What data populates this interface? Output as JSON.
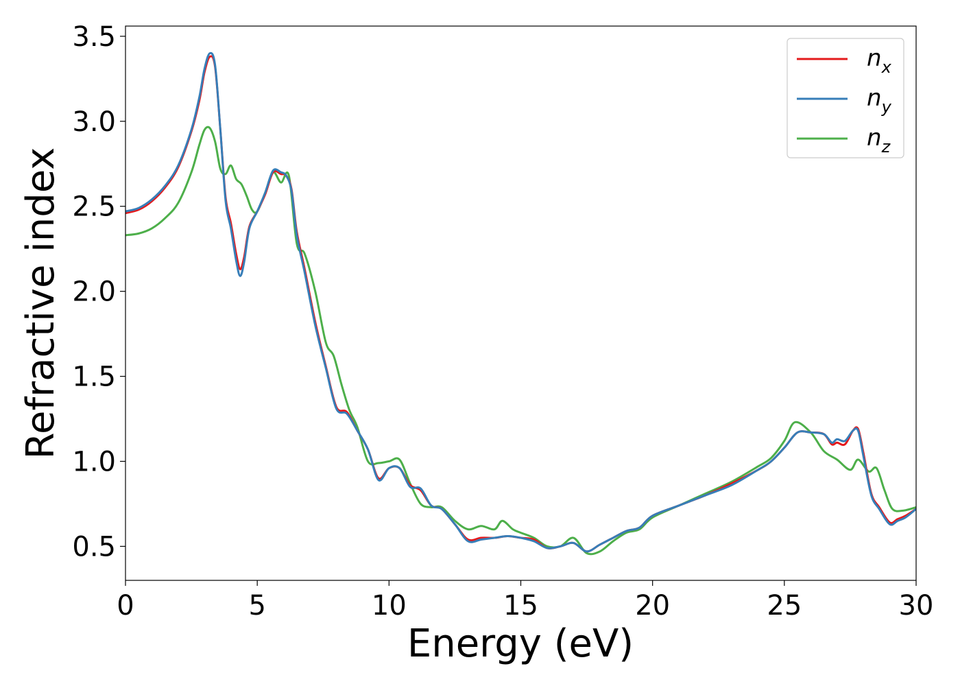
{
  "chart_data": {
    "type": "line",
    "xlabel": "Energy (eV)",
    "ylabel": "Refractive index",
    "xlim": [
      0,
      30
    ],
    "ylim": [
      0.3,
      3.56
    ],
    "xticks": [
      0,
      5,
      10,
      15,
      20,
      25,
      30
    ],
    "xtick_labels": [
      "0",
      "5",
      "10",
      "15",
      "20",
      "25",
      "30"
    ],
    "yticks": [
      0.5,
      1.0,
      1.5,
      2.0,
      2.5,
      3.0,
      3.5
    ],
    "ytick_labels": [
      "0.5",
      "1.0",
      "1.5",
      "2.0",
      "2.5",
      "3.0",
      "3.5"
    ],
    "grid": false,
    "legend_position": "top-right",
    "series": [
      {
        "name": "n_x",
        "label_main": "n",
        "label_sub": "x",
        "color": "#e41a1c",
        "x": [
          0,
          0.5,
          1,
          1.5,
          2,
          2.5,
          2.8,
          3.0,
          3.2,
          3.4,
          3.6,
          3.8,
          4.0,
          4.2,
          4.35,
          4.5,
          4.7,
          5.0,
          5.3,
          5.6,
          5.9,
          6.1,
          6.3,
          6.5,
          6.8,
          7.2,
          7.6,
          8.0,
          8.4,
          8.8,
          9.2,
          9.6,
          10.0,
          10.4,
          10.8,
          11.2,
          11.6,
          12.0,
          12.5,
          13.0,
          13.5,
          14.0,
          14.5,
          15.0,
          15.5,
          16.0,
          16.5,
          17.0,
          17.5,
          18.0,
          18.5,
          19.0,
          19.5,
          20.0,
          21.0,
          22.0,
          23.0,
          24.0,
          24.5,
          25.0,
          25.5,
          26.0,
          26.5,
          26.8,
          27.0,
          27.3,
          27.6,
          27.8,
          28.0,
          28.3,
          28.6,
          29.0,
          29.3,
          29.6,
          30.0
        ],
        "values": [
          2.46,
          2.48,
          2.53,
          2.61,
          2.73,
          2.94,
          3.12,
          3.29,
          3.38,
          3.32,
          2.95,
          2.55,
          2.4,
          2.22,
          2.13,
          2.2,
          2.38,
          2.47,
          2.57,
          2.7,
          2.69,
          2.68,
          2.6,
          2.35,
          2.13,
          1.82,
          1.56,
          1.32,
          1.29,
          1.18,
          1.07,
          0.9,
          0.96,
          0.96,
          0.86,
          0.83,
          0.74,
          0.72,
          0.63,
          0.54,
          0.55,
          0.55,
          0.56,
          0.55,
          0.54,
          0.49,
          0.5,
          0.52,
          0.47,
          0.51,
          0.55,
          0.59,
          0.61,
          0.68,
          0.74,
          0.8,
          0.87,
          0.95,
          1.0,
          1.08,
          1.17,
          1.17,
          1.16,
          1.1,
          1.11,
          1.1,
          1.18,
          1.19,
          1.05,
          0.81,
          0.73,
          0.64,
          0.66,
          0.68,
          0.72
        ]
      },
      {
        "name": "n_y",
        "label_main": "n",
        "label_sub": "y",
        "color": "#377eb8",
        "x": [
          0,
          0.5,
          1,
          1.5,
          2,
          2.5,
          2.8,
          3.0,
          3.2,
          3.4,
          3.6,
          3.8,
          4.0,
          4.2,
          4.35,
          4.5,
          4.7,
          5.0,
          5.3,
          5.6,
          5.9,
          6.1,
          6.3,
          6.5,
          6.8,
          7.2,
          7.6,
          8.0,
          8.4,
          8.8,
          9.2,
          9.6,
          10.0,
          10.4,
          10.8,
          11.2,
          11.6,
          12.0,
          12.5,
          13.0,
          13.5,
          14.0,
          14.5,
          15.0,
          15.5,
          16.0,
          16.5,
          17.0,
          17.5,
          18.0,
          18.5,
          19.0,
          19.5,
          20.0,
          21.0,
          22.0,
          23.0,
          24.0,
          24.5,
          25.0,
          25.5,
          26.0,
          26.5,
          26.8,
          27.0,
          27.3,
          27.6,
          27.8,
          28.0,
          28.3,
          28.6,
          29.0,
          29.3,
          29.6,
          30.0
        ],
        "values": [
          2.47,
          2.49,
          2.54,
          2.62,
          2.74,
          2.95,
          3.14,
          3.31,
          3.4,
          3.33,
          2.95,
          2.53,
          2.37,
          2.18,
          2.09,
          2.17,
          2.37,
          2.47,
          2.58,
          2.71,
          2.7,
          2.68,
          2.59,
          2.33,
          2.11,
          1.8,
          1.55,
          1.31,
          1.28,
          1.18,
          1.07,
          0.89,
          0.96,
          0.96,
          0.85,
          0.84,
          0.74,
          0.72,
          0.63,
          0.53,
          0.54,
          0.55,
          0.56,
          0.55,
          0.53,
          0.49,
          0.5,
          0.52,
          0.47,
          0.51,
          0.55,
          0.59,
          0.61,
          0.68,
          0.74,
          0.8,
          0.86,
          0.95,
          1.0,
          1.08,
          1.17,
          1.17,
          1.16,
          1.11,
          1.13,
          1.12,
          1.18,
          1.18,
          1.03,
          0.8,
          0.72,
          0.63,
          0.65,
          0.67,
          0.72
        ]
      },
      {
        "name": "n_z",
        "label_main": "n",
        "label_sub": "z",
        "color": "#4daf4a",
        "x": [
          0,
          0.5,
          1,
          1.5,
          2,
          2.5,
          2.8,
          3.0,
          3.2,
          3.4,
          3.6,
          3.8,
          4.0,
          4.2,
          4.4,
          4.6,
          4.8,
          5.0,
          5.3,
          5.6,
          5.9,
          6.2,
          6.5,
          6.8,
          7.2,
          7.6,
          7.9,
          8.2,
          8.5,
          8.8,
          9.2,
          9.6,
          10.0,
          10.4,
          10.8,
          11.2,
          11.6,
          12.0,
          12.5,
          13.0,
          13.5,
          14.0,
          14.3,
          14.7,
          15.0,
          15.5,
          16.0,
          16.5,
          17.0,
          17.5,
          18.0,
          18.5,
          19.0,
          19.5,
          20.0,
          21.0,
          22.0,
          23.0,
          24.0,
          24.5,
          25.0,
          25.4,
          26.0,
          26.5,
          27.0,
          27.5,
          27.8,
          28.2,
          28.5,
          28.8,
          29.1,
          29.5,
          30.0
        ],
        "values": [
          2.33,
          2.34,
          2.37,
          2.43,
          2.52,
          2.7,
          2.86,
          2.95,
          2.96,
          2.88,
          2.72,
          2.69,
          2.74,
          2.66,
          2.63,
          2.56,
          2.48,
          2.47,
          2.58,
          2.7,
          2.64,
          2.68,
          2.28,
          2.22,
          2.0,
          1.7,
          1.62,
          1.45,
          1.3,
          1.2,
          1.0,
          0.99,
          1.0,
          1.01,
          0.87,
          0.75,
          0.73,
          0.73,
          0.65,
          0.6,
          0.62,
          0.6,
          0.65,
          0.6,
          0.58,
          0.55,
          0.5,
          0.5,
          0.55,
          0.46,
          0.47,
          0.53,
          0.58,
          0.6,
          0.67,
          0.74,
          0.81,
          0.88,
          0.97,
          1.02,
          1.12,
          1.23,
          1.17,
          1.06,
          1.01,
          0.95,
          1.01,
          0.94,
          0.96,
          0.83,
          0.72,
          0.71,
          0.73
        ]
      }
    ]
  }
}
